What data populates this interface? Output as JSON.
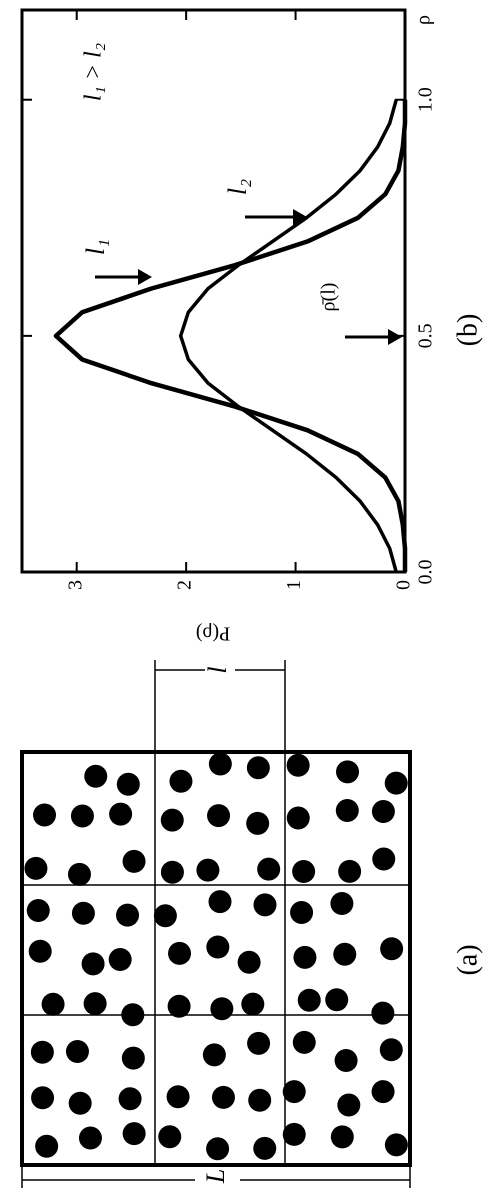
{
  "chart_data": {
    "type": "line",
    "panel_label": "(b)",
    "x_label": "ρ",
    "y_label": "P(ρ)",
    "x": [
      0,
      0.05,
      0.1,
      0.15,
      0.2,
      0.25,
      0.3,
      0.35,
      0.4,
      0.45,
      0.5,
      0.55,
      0.6,
      0.65,
      0.7,
      0.75,
      0.8,
      0.85,
      0.9,
      0.95,
      1.0
    ],
    "series": [
      {
        "name": "l₁",
        "color": "#000000",
        "values": [
          0,
          0,
          0.02,
          0.06,
          0.18,
          0.43,
          0.89,
          1.55,
          2.32,
          2.95,
          3.19,
          2.95,
          2.32,
          1.55,
          0.89,
          0.43,
          0.18,
          0.06,
          0.02,
          0,
          0
        ]
      },
      {
        "name": "l₂",
        "color": "#000000",
        "values": [
          0.08,
          0.14,
          0.25,
          0.41,
          0.63,
          0.9,
          1.21,
          1.52,
          1.8,
          1.98,
          2.05,
          1.98,
          1.8,
          1.52,
          1.21,
          0.9,
          0.63,
          0.41,
          0.25,
          0.14,
          0.08
        ]
      }
    ],
    "annotations": [
      "ρ̄(l)",
      "l₁ > l₂"
    ],
    "xlim": [
      0,
      1.19
    ],
    "ylim": [
      0,
      3.5
    ],
    "xticks": [
      {
        "value": 0,
        "label": "0.0"
      },
      {
        "value": 0.5,
        "label": "0.5"
      },
      {
        "value": 1,
        "label": "1.0"
      }
    ],
    "yticks": [
      0,
      1,
      2,
      3
    ]
  },
  "panel_a": {
    "label": "(a)",
    "box_label": "L",
    "cell_label": "l"
  }
}
